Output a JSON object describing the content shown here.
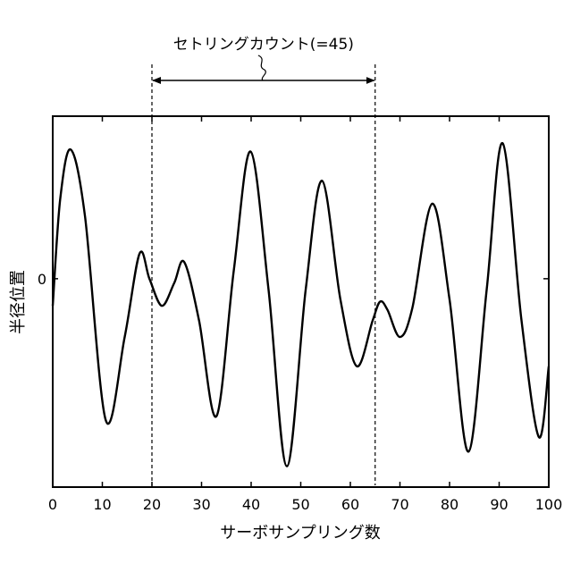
{
  "chart_data": {
    "type": "line",
    "title": "",
    "xlabel": "サーボサンプリング数",
    "ylabel": "半径位置",
    "xlim": [
      0,
      100
    ],
    "ylim": [
      -1.0,
      0.78
    ],
    "xticks": [
      0,
      10,
      20,
      30,
      40,
      50,
      60,
      70,
      80,
      90,
      100
    ],
    "yticks": [
      0
    ],
    "grid": false,
    "legend": "none",
    "series": [
      {
        "name": "",
        "x": [
          0,
          1.5,
          3.6,
          6.5,
          10.7,
          14.5,
          17.5,
          19.5,
          22.0,
          24.5,
          26.5,
          29.5,
          33.0,
          36.5,
          39.9,
          43.5,
          47.2,
          51.0,
          54.3,
          58.0,
          61.3,
          64.5,
          66.0,
          67.5,
          70.0,
          72.5,
          76.5,
          80.0,
          83.8,
          87.5,
          90.7,
          94.5,
          98.0,
          100
        ],
        "y": [
          -0.13,
          0.38,
          0.62,
          0.3,
          -0.68,
          -0.28,
          0.12,
          0.0,
          -0.13,
          -0.02,
          0.08,
          -0.2,
          -0.66,
          0.04,
          0.61,
          -0.05,
          -0.9,
          -0.05,
          0.47,
          -0.1,
          -0.42,
          -0.2,
          -0.11,
          -0.15,
          -0.28,
          -0.14,
          0.36,
          -0.1,
          -0.83,
          -0.05,
          0.65,
          -0.2,
          -0.76,
          -0.42
        ]
      }
    ],
    "annotations": {
      "markers_x": [
        20,
        65
      ],
      "span_label": "セトリングカウント(=45)",
      "y_zero_label": "0"
    }
  }
}
